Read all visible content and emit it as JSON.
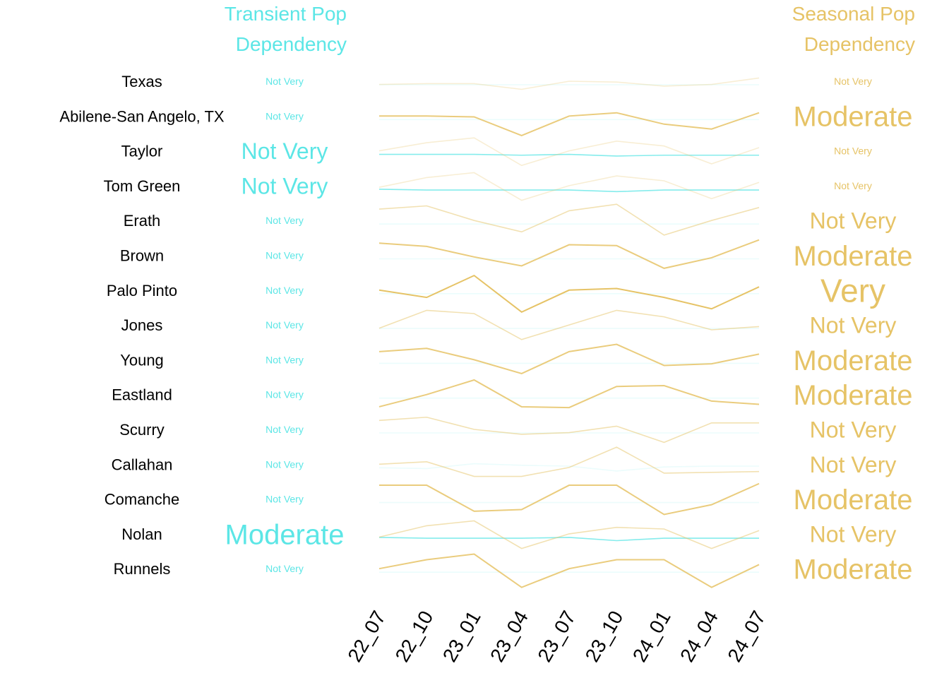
{
  "colors": {
    "transient": "#5ce6e6",
    "seasonal": "#e6c366",
    "text": "#000000",
    "background": "#ffffff"
  },
  "headers": {
    "transient": [
      "Transient Pop",
      "Dependency"
    ],
    "seasonal": [
      "Seasonal Pop",
      "Dependency"
    ]
  },
  "chart_data": {
    "type": "line",
    "x": [
      "22_07",
      "22_10",
      "23_01",
      "23_04",
      "23_07",
      "23_10",
      "24_01",
      "24_04",
      "24_07"
    ],
    "rows": [
      {
        "region": "Texas",
        "transient": "Not Very",
        "seasonal": "Not Very",
        "transient_series": [
          0.0,
          0.0,
          0.0,
          0.0,
          0.0,
          0.0,
          0.0,
          0.0,
          0.0
        ],
        "seasonal_series": [
          0.2,
          0.15,
          0.15,
          0.5,
          0.0,
          0.05,
          0.3,
          0.2,
          -0.2
        ]
      },
      {
        "region": "Abilene-San Angelo, TX",
        "transient": "Not Very",
        "seasonal": "Moderate",
        "transient_series": [
          0.0,
          0.0,
          0.0,
          0.0,
          0.0,
          0.0,
          0.0,
          0.0,
          0.0
        ],
        "seasonal_series": [
          0.0,
          0.0,
          0.05,
          1.2,
          0.0,
          -0.2,
          0.5,
          0.8,
          -0.2
        ]
      },
      {
        "region": "Taylor",
        "transient": "Not Very",
        "seasonal": "Not Very",
        "transient_series": [
          0.0,
          0.0,
          0.0,
          0.05,
          0.0,
          0.1,
          0.05,
          0.05,
          0.05
        ],
        "seasonal_series": [
          0.0,
          -0.5,
          -0.8,
          0.9,
          0.0,
          -0.6,
          -0.3,
          0.8,
          -0.2
        ]
      },
      {
        "region": "Tom Green",
        "transient": "Not Very",
        "seasonal": "Not Very",
        "transient_series": [
          0.0,
          0.05,
          0.05,
          0.05,
          0.05,
          0.15,
          0.05,
          0.05,
          0.05
        ],
        "seasonal_series": [
          0.1,
          -0.5,
          -0.8,
          0.9,
          0.0,
          -0.6,
          -0.3,
          0.8,
          -0.2
        ]
      },
      {
        "region": "Erath",
        "transient": "Not Very",
        "seasonal": "Not Very",
        "transient_series": [
          0.0,
          0.0,
          0.0,
          0.0,
          0.0,
          0.0,
          0.0,
          0.0,
          0.0
        ],
        "seasonal_series": [
          -0.7,
          -0.9,
          0.0,
          0.7,
          -0.6,
          -1.0,
          0.9,
          0.0,
          -0.8
        ]
      },
      {
        "region": "Brown",
        "transient": "Not Very",
        "seasonal": "Moderate",
        "transient_series": [
          0.0,
          0.0,
          0.0,
          0.0,
          0.0,
          0.0,
          0.0,
          0.0,
          0.0
        ],
        "seasonal_series": [
          -0.75,
          -0.55,
          0.1,
          0.65,
          -0.65,
          -0.6,
          0.8,
          0.15,
          -0.95
        ]
      },
      {
        "region": "Palo Pinto",
        "transient": "Not Very",
        "seasonal": "Very",
        "transient_series": [
          0.0,
          0.0,
          0.0,
          0.0,
          0.0,
          0.0,
          0.0,
          0.0,
          0.0
        ],
        "seasonal_series": [
          0.0,
          0.45,
          -0.9,
          1.35,
          0.0,
          -0.1,
          0.45,
          1.15,
          -0.2
        ]
      },
      {
        "region": "Jones",
        "transient": "Not Very",
        "seasonal": "Not Very",
        "transient_series": [
          0.0,
          0.0,
          0.0,
          0.0,
          0.0,
          0.0,
          0.0,
          0.0,
          0.0
        ],
        "seasonal_series": [
          0.2,
          -0.9,
          -0.7,
          0.9,
          0.0,
          -0.9,
          -0.5,
          0.3,
          0.1
        ]
      },
      {
        "region": "Young",
        "transient": "Not Very",
        "seasonal": "Moderate",
        "transient_series": [
          0.0,
          0.0,
          0.0,
          0.0,
          0.0,
          0.0,
          0.0,
          0.0,
          0.0
        ],
        "seasonal_series": [
          -0.5,
          -0.7,
          0.0,
          0.85,
          -0.5,
          -0.95,
          0.35,
          0.25,
          -0.35
        ]
      },
      {
        "region": "Eastland",
        "transient": "Not Very",
        "seasonal": "Moderate",
        "transient_series": [
          0.0,
          0.0,
          0.0,
          0.0,
          0.0,
          0.0,
          0.0,
          0.0,
          0.0
        ],
        "seasonal_series": [
          0.75,
          0.0,
          -0.9,
          0.75,
          0.8,
          -0.5,
          -0.55,
          0.4,
          0.6
        ]
      },
      {
        "region": "Scurry",
        "transient": "Not Very",
        "seasonal": "Not Very",
        "transient_series": [
          0.0,
          0.0,
          0.0,
          0.0,
          0.0,
          0.0,
          0.0,
          0.0,
          0.0
        ],
        "seasonal_series": [
          -0.55,
          -0.75,
          0.0,
          0.3,
          0.2,
          -0.2,
          0.8,
          -0.4,
          -0.4
        ]
      },
      {
        "region": "Callahan",
        "transient": "Not Very",
        "seasonal": "Not Very",
        "transient_series": [
          0.0,
          0.05,
          -0.25,
          -0.15,
          -0.1,
          0.2,
          -0.05,
          -0.1,
          -0.1
        ],
        "seasonal_series": [
          0.0,
          -0.15,
          0.75,
          0.75,
          0.2,
          -1.05,
          0.55,
          0.5,
          0.45
        ]
      },
      {
        "region": "Comanche",
        "transient": "Not Very",
        "seasonal": "Moderate",
        "transient_series": [
          0.0,
          0.0,
          0.0,
          0.0,
          0.0,
          0.0,
          0.0,
          0.0,
          0.0
        ],
        "seasonal_series": [
          -0.85,
          -0.85,
          0.75,
          0.65,
          -0.85,
          -0.85,
          0.95,
          0.35,
          -0.95
        ]
      },
      {
        "region": "Nolan",
        "transient": "Moderate",
        "seasonal": "Not Very",
        "transient_series": [
          0.0,
          0.05,
          0.05,
          0.05,
          0.0,
          0.2,
          0.05,
          0.05,
          0.05
        ],
        "seasonal_series": [
          0.2,
          -0.5,
          -0.8,
          0.9,
          0.0,
          -0.4,
          -0.3,
          0.9,
          -0.2
        ]
      },
      {
        "region": "Runnels",
        "transient": "Not Very",
        "seasonal": "Moderate",
        "transient_series": [
          0.0,
          0.0,
          0.0,
          0.0,
          0.0,
          0.0,
          0.0,
          0.0,
          0.0
        ],
        "seasonal_series": [
          0.0,
          -0.55,
          -0.9,
          1.15,
          0.0,
          -0.55,
          -0.55,
          1.15,
          -0.25
        ]
      }
    ]
  }
}
